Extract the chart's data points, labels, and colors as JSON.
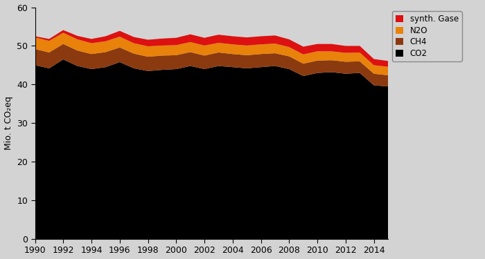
{
  "years": [
    1990,
    1991,
    1992,
    1993,
    1994,
    1995,
    1996,
    1997,
    1998,
    1999,
    2000,
    2001,
    2002,
    2003,
    2004,
    2005,
    2006,
    2007,
    2008,
    2009,
    2010,
    2011,
    2012,
    2013,
    2014,
    2015
  ],
  "CO2": [
    45.0,
    44.2,
    46.5,
    44.8,
    44.0,
    44.5,
    45.8,
    44.2,
    43.5,
    43.8,
    44.0,
    44.8,
    44.0,
    44.8,
    44.5,
    44.2,
    44.5,
    44.8,
    44.0,
    42.2,
    43.0,
    43.2,
    42.8,
    43.0,
    39.8,
    39.5
  ],
  "CH4": [
    4.2,
    4.1,
    4.0,
    4.0,
    3.9,
    3.9,
    3.8,
    3.8,
    3.7,
    3.7,
    3.6,
    3.6,
    3.5,
    3.5,
    3.4,
    3.4,
    3.4,
    3.3,
    3.3,
    3.2,
    3.2,
    3.1,
    3.1,
    3.0,
    3.0,
    2.9
  ],
  "N2O": [
    3.0,
    3.0,
    2.9,
    2.9,
    2.8,
    2.8,
    2.8,
    2.7,
    2.7,
    2.6,
    2.6,
    2.6,
    2.6,
    2.5,
    2.5,
    2.5,
    2.5,
    2.5,
    2.4,
    2.4,
    2.4,
    2.3,
    2.3,
    2.3,
    2.2,
    2.2
  ],
  "synth_Gase": [
    0.3,
    0.5,
    0.7,
    0.9,
    1.1,
    1.3,
    1.5,
    1.6,
    1.7,
    1.8,
    1.9,
    2.0,
    2.0,
    2.1,
    2.1,
    2.1,
    2.1,
    2.1,
    2.0,
    2.0,
    1.9,
    1.9,
    1.8,
    1.7,
    1.6,
    1.5
  ],
  "colors": {
    "CO2": "#000000",
    "CH4": "#8B3A10",
    "N2O": "#E8820A",
    "synth_Gase": "#DD1111"
  },
  "labels": {
    "CO2": "CO2",
    "CH4": "CH4",
    "N2O": "N2O",
    "synth_Gase": "synth. Gase"
  },
  "ylabel": "Mio. t CO₂eq",
  "ylim": [
    0,
    60
  ],
  "yticks": [
    0,
    10,
    20,
    30,
    40,
    50,
    60
  ],
  "xlim": [
    1990,
    2015
  ],
  "xticks": [
    1990,
    1992,
    1994,
    1996,
    1998,
    2000,
    2002,
    2004,
    2006,
    2008,
    2010,
    2012,
    2014
  ],
  "bg_color": "#D3D3D3",
  "plot_bg": "#D3D3D3"
}
